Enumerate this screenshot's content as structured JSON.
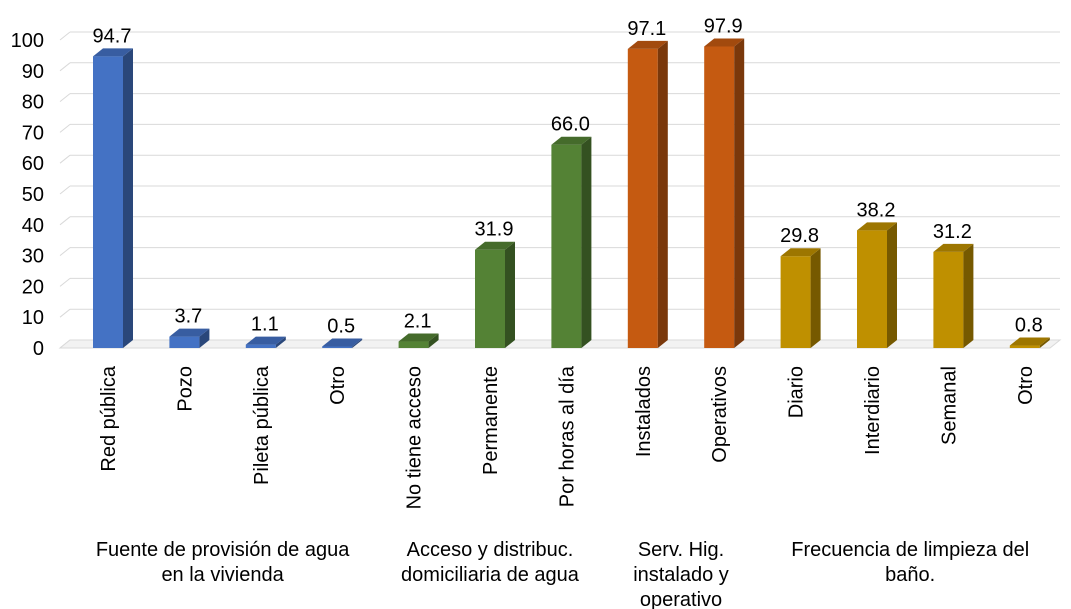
{
  "chart_data": {
    "type": "bar",
    "ylim": [
      0,
      100
    ],
    "yticks": [
      0,
      10,
      20,
      30,
      40,
      50,
      60,
      70,
      80,
      90,
      100
    ],
    "grid": true,
    "style": "3d-columns",
    "groups": [
      {
        "label_lines": [
          "Fuente de provisión de agua",
          "en la vivienda"
        ],
        "color": "#4472C4",
        "categories": [
          "Red pública",
          "Pozo",
          "Pileta pública",
          "Otro"
        ],
        "values": [
          94.7,
          3.7,
          1.1,
          0.5
        ],
        "value_labels": [
          "94.7",
          "3.7",
          "1.1",
          "0.5"
        ]
      },
      {
        "label_lines": [
          "Acceso y distribuc.",
          "domiciliaria de agua"
        ],
        "color": "#548235",
        "categories": [
          "No tiene acceso",
          "Permanente",
          "Por horas al día"
        ],
        "values": [
          2.1,
          31.9,
          66.0
        ],
        "value_labels": [
          "2.1",
          "31.9",
          "66.0"
        ]
      },
      {
        "label_lines": [
          "Serv. Hig.",
          "instalado y",
          "operativo"
        ],
        "color": "#C55A11",
        "categories": [
          "Instalados",
          "Operativos"
        ],
        "values": [
          97.1,
          97.9
        ],
        "value_labels": [
          "97.1",
          "97.9"
        ]
      },
      {
        "label_lines": [
          "Frecuencia de limpieza del",
          "baño."
        ],
        "color": "#BF9000",
        "categories": [
          "Diario",
          "Interdiario",
          "Semanal",
          "Otro"
        ],
        "values": [
          29.8,
          38.2,
          31.2,
          0.8
        ],
        "value_labels": [
          "29.8",
          "38.2",
          "31.2",
          "0.8"
        ]
      }
    ]
  }
}
